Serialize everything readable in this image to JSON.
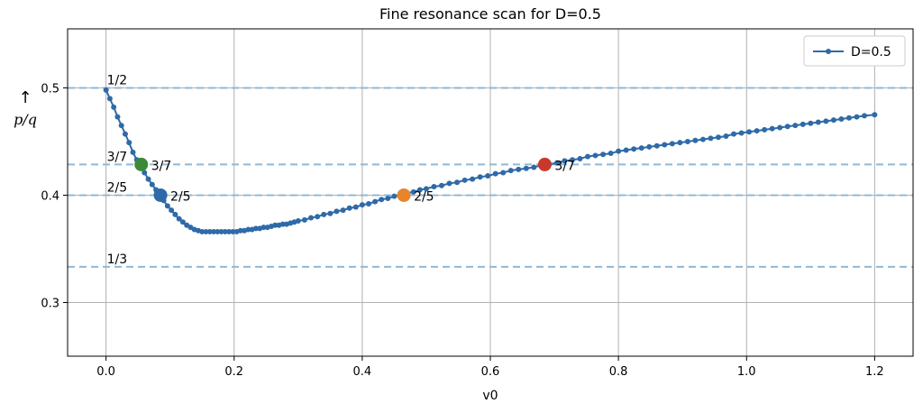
{
  "chart_data": {
    "type": "line",
    "title": "Fine resonance scan for D=0.5",
    "xlabel": "v0",
    "ylabel": "p/q",
    "ylabel_arrow": "↑",
    "xlim": [
      -0.06,
      1.26
    ],
    "ylim": [
      0.25,
      0.555
    ],
    "x_ticks": [
      0.0,
      0.2,
      0.4,
      0.6,
      0.8,
      1.0,
      1.2
    ],
    "x_tick_labels": [
      "0.0",
      "0.2",
      "0.4",
      "0.6",
      "0.8",
      "1.0",
      "1.2"
    ],
    "y_ticks": [
      0.3,
      0.4,
      0.5
    ],
    "y_tick_labels": [
      "0.3",
      "0.4",
      "0.5"
    ],
    "grid": true,
    "legend": {
      "position": "top-right"
    },
    "series": [
      {
        "name": "D=0.5",
        "color": "#2f6aa8",
        "marker": "circle",
        "x": [
          0.0,
          0.006,
          0.012,
          0.018,
          0.024,
          0.03,
          0.036,
          0.042,
          0.048,
          0.054,
          0.06,
          0.066,
          0.072,
          0.078,
          0.084,
          0.09,
          0.096,
          0.102,
          0.108,
          0.114,
          0.12,
          0.126,
          0.132,
          0.138,
          0.144,
          0.15,
          0.156,
          0.162,
          0.168,
          0.174,
          0.18,
          0.186,
          0.192,
          0.198,
          0.204,
          0.21,
          0.216,
          0.222,
          0.228,
          0.234,
          0.24,
          0.246,
          0.252,
          0.258,
          0.264,
          0.27,
          0.276,
          0.282,
          0.288,
          0.294,
          0.3,
          0.31,
          0.32,
          0.33,
          0.34,
          0.35,
          0.36,
          0.37,
          0.38,
          0.39,
          0.4,
          0.41,
          0.42,
          0.43,
          0.44,
          0.45,
          0.46,
          0.47,
          0.48,
          0.49,
          0.5,
          0.512,
          0.524,
          0.536,
          0.548,
          0.56,
          0.572,
          0.584,
          0.596,
          0.608,
          0.62,
          0.632,
          0.644,
          0.656,
          0.668,
          0.68,
          0.692,
          0.704,
          0.716,
          0.728,
          0.74,
          0.752,
          0.764,
          0.776,
          0.788,
          0.8,
          0.812,
          0.824,
          0.836,
          0.848,
          0.86,
          0.872,
          0.884,
          0.896,
          0.908,
          0.92,
          0.932,
          0.944,
          0.956,
          0.968,
          0.98,
          0.992,
          1.004,
          1.016,
          1.028,
          1.04,
          1.052,
          1.064,
          1.076,
          1.088,
          1.1,
          1.112,
          1.124,
          1.136,
          1.148,
          1.16,
          1.172,
          1.184,
          1.2
        ],
        "y": [
          0.498,
          0.49,
          0.482,
          0.473,
          0.465,
          0.457,
          0.449,
          0.44,
          0.433,
          0.427,
          0.421,
          0.415,
          0.41,
          0.405,
          0.4,
          0.395,
          0.39,
          0.386,
          0.382,
          0.378,
          0.375,
          0.372,
          0.37,
          0.368,
          0.367,
          0.366,
          0.366,
          0.366,
          0.366,
          0.366,
          0.366,
          0.366,
          0.366,
          0.366,
          0.366,
          0.367,
          0.367,
          0.368,
          0.368,
          0.369,
          0.369,
          0.37,
          0.37,
          0.371,
          0.372,
          0.372,
          0.373,
          0.373,
          0.374,
          0.375,
          0.376,
          0.377,
          0.379,
          0.38,
          0.382,
          0.383,
          0.385,
          0.386,
          0.388,
          0.389,
          0.391,
          0.392,
          0.394,
          0.396,
          0.397,
          0.399,
          0.4,
          0.402,
          0.403,
          0.405,
          0.406,
          0.408,
          0.409,
          0.411,
          0.412,
          0.414,
          0.415,
          0.417,
          0.418,
          0.42,
          0.421,
          0.423,
          0.424,
          0.425,
          0.426,
          0.428,
          0.429,
          0.43,
          0.432,
          0.433,
          0.434,
          0.436,
          0.437,
          0.438,
          0.439,
          0.441,
          0.442,
          0.443,
          0.444,
          0.445,
          0.446,
          0.447,
          0.448,
          0.449,
          0.45,
          0.451,
          0.452,
          0.453,
          0.454,
          0.455,
          0.457,
          0.458,
          0.459,
          0.46,
          0.461,
          0.462,
          0.463,
          0.464,
          0.465,
          0.466,
          0.467,
          0.468,
          0.469,
          0.47,
          0.471,
          0.472,
          0.473,
          0.474,
          0.475
        ]
      }
    ],
    "reference_lines": [
      {
        "y": 0.5,
        "label": "1/2"
      },
      {
        "y": 0.4286,
        "label": "3/7"
      },
      {
        "y": 0.4,
        "label": "2/5"
      },
      {
        "y": 0.3333,
        "label": "1/3"
      }
    ],
    "reference_line_color": "#8fb8d8",
    "highlight_points": [
      {
        "x": 0.055,
        "y": 0.4286,
        "label": "3/7",
        "color": "#3a8a3a"
      },
      {
        "x": 0.085,
        "y": 0.4,
        "label": "2/5",
        "color": "#2f6aa8"
      },
      {
        "x": 0.465,
        "y": 0.4,
        "label": "2/5",
        "color": "#e8852a"
      },
      {
        "x": 0.685,
        "y": 0.4286,
        "label": "3/7",
        "color": "#c8392b"
      }
    ]
  }
}
